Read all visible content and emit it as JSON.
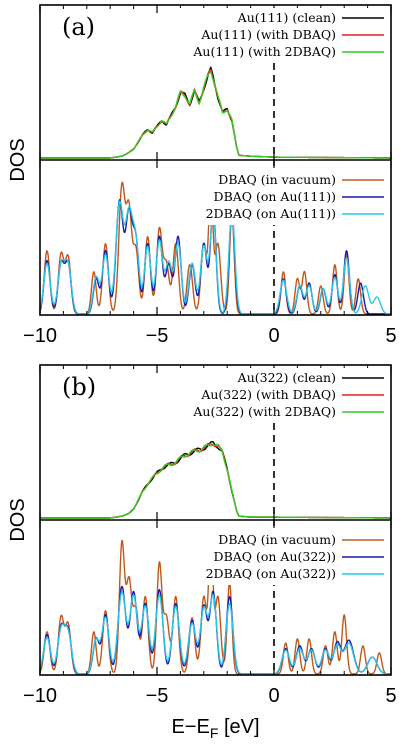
{
  "chart_data": {
    "type": "line",
    "xlabel_main": "E−E",
    "xlabel_sub": "F",
    "xlabel_unit": " [eV]",
    "xlim": [
      -10,
      5
    ],
    "xticks": [
      "−10",
      "−5",
      "0",
      "5"
    ],
    "fermi_level": 0,
    "ylabel": "DOS",
    "panels": [
      {
        "label": "(a)",
        "top_legend": [
          {
            "name": "Au(111) (clean)",
            "color": "#000000"
          },
          {
            "name": "Au(111) (with DBAQ)",
            "color": "#e0201b"
          },
          {
            "name": "Au(111) (with 2DBAQ)",
            "color": "#33cc22"
          }
        ],
        "bottom_legend": [
          {
            "name": "DBAQ (in vacuum)",
            "color": "#c0581a"
          },
          {
            "name": "DBAQ (on Au(111))",
            "color": "#1a1aa8"
          },
          {
            "name": "2DBAQ (on Au(111))",
            "color": "#29c6e6"
          }
        ],
        "metal_dos": {
          "x": [
            -10,
            -7,
            -6.5,
            -6.2,
            -6,
            -5.8,
            -5.6,
            -5.4,
            -5.2,
            -5.0,
            -4.8,
            -4.6,
            -4.4,
            -4.2,
            -4.0,
            -3.8,
            -3.6,
            -3.4,
            -3.2,
            -3.0,
            -2.8,
            -2.7,
            -2.6,
            -2.5,
            -2.4,
            -2.2,
            -2.0,
            -1.8,
            -1.6,
            -1.5,
            -1.0,
            0,
            5
          ],
          "y": [
            0,
            0,
            0.02,
            0.06,
            0.1,
            0.18,
            0.26,
            0.32,
            0.28,
            0.35,
            0.42,
            0.37,
            0.47,
            0.58,
            0.72,
            0.7,
            0.6,
            0.74,
            0.62,
            0.78,
            0.92,
            0.98,
            0.9,
            0.8,
            0.68,
            0.5,
            0.55,
            0.42,
            0.12,
            0.03,
            0.02,
            0.01,
            0
          ]
        },
        "molecule_peaks": {
          "vacuum": [
            [
              -9.7,
              0.45,
              0.12
            ],
            [
              -9.1,
              0.42,
              0.12
            ],
            [
              -8.8,
              0.4,
              0.12
            ],
            [
              -7.7,
              0.3,
              0.1
            ],
            [
              -7.2,
              0.5,
              0.12
            ],
            [
              -6.5,
              0.9,
              0.13
            ],
            [
              -6.2,
              0.72,
              0.12
            ],
            [
              -5.9,
              0.45,
              0.12
            ],
            [
              -5.4,
              0.55,
              0.12
            ],
            [
              -4.9,
              0.6,
              0.12
            ],
            [
              -4.6,
              0.35,
              0.12
            ],
            [
              -4.2,
              0.5,
              0.12
            ],
            [
              -3.6,
              0.35,
              0.12
            ],
            [
              -3.0,
              0.5,
              0.12
            ],
            [
              -2.7,
              0.88,
              0.09
            ],
            [
              -2.4,
              0.5,
              0.12
            ],
            [
              -1.8,
              0.7,
              0.1
            ],
            [
              0.4,
              0.3,
              0.1
            ],
            [
              1.0,
              0.25,
              0.1
            ],
            [
              1.3,
              0.3,
              0.1
            ],
            [
              2.0,
              0.2,
              0.1
            ],
            [
              2.6,
              0.35,
              0.1
            ],
            [
              3.1,
              0.42,
              0.1
            ],
            [
              3.6,
              0.25,
              0.1
            ]
          ],
          "on_metal": [
            [
              -9.7,
              0.38,
              0.13
            ],
            [
              -9.1,
              0.35,
              0.13
            ],
            [
              -8.8,
              0.35,
              0.13
            ],
            [
              -7.6,
              0.25,
              0.12
            ],
            [
              -7.2,
              0.45,
              0.13
            ],
            [
              -6.6,
              0.8,
              0.15
            ],
            [
              -6.2,
              0.7,
              0.14
            ],
            [
              -5.9,
              0.5,
              0.13
            ],
            [
              -5.4,
              0.5,
              0.13
            ],
            [
              -4.9,
              0.55,
              0.13
            ],
            [
              -4.5,
              0.35,
              0.13
            ],
            [
              -4.1,
              0.55,
              0.13
            ],
            [
              -3.5,
              0.35,
              0.13
            ],
            [
              -3.0,
              0.5,
              0.13
            ],
            [
              -2.6,
              0.75,
              0.12
            ],
            [
              -1.8,
              0.72,
              0.12
            ],
            [
              0.4,
              0.25,
              0.12
            ],
            [
              1.1,
              0.2,
              0.12
            ],
            [
              1.5,
              0.22,
              0.12
            ],
            [
              2.1,
              0.18,
              0.12
            ],
            [
              2.6,
              0.28,
              0.12
            ],
            [
              3.1,
              0.45,
              0.12
            ],
            [
              3.7,
              0.22,
              0.12
            ]
          ],
          "two_on_metal": [
            [
              -9.7,
              0.36,
              0.14
            ],
            [
              -9.1,
              0.34,
              0.14
            ],
            [
              -8.8,
              0.34,
              0.14
            ],
            [
              -7.6,
              0.26,
              0.13
            ],
            [
              -7.2,
              0.42,
              0.14
            ],
            [
              -6.6,
              0.78,
              0.16
            ],
            [
              -6.2,
              0.68,
              0.15
            ],
            [
              -5.9,
              0.48,
              0.14
            ],
            [
              -5.4,
              0.48,
              0.14
            ],
            [
              -4.9,
              0.52,
              0.14
            ],
            [
              -4.5,
              0.36,
              0.14
            ],
            [
              -4.1,
              0.5,
              0.14
            ],
            [
              -3.5,
              0.36,
              0.14
            ],
            [
              -3.0,
              0.48,
              0.14
            ],
            [
              -2.6,
              0.7,
              0.13
            ],
            [
              -1.8,
              0.7,
              0.13
            ],
            [
              0.4,
              0.24,
              0.14
            ],
            [
              1.1,
              0.2,
              0.13
            ],
            [
              1.5,
              0.2,
              0.13
            ],
            [
              2.1,
              0.18,
              0.13
            ],
            [
              2.6,
              0.26,
              0.13
            ],
            [
              3.1,
              0.4,
              0.13
            ],
            [
              3.9,
              0.2,
              0.15
            ],
            [
              4.4,
              0.12,
              0.15
            ]
          ]
        }
      },
      {
        "label": "(b)",
        "top_legend": [
          {
            "name": "Au(322) (clean)",
            "color": "#000000"
          },
          {
            "name": "Au(322) (with DBAQ)",
            "color": "#e0201b"
          },
          {
            "name": "Au(322) (with 2DBAQ)",
            "color": "#33cc22"
          }
        ],
        "bottom_legend": [
          {
            "name": "DBAQ (in vacuum)",
            "color": "#c0581a"
          },
          {
            "name": "DBAQ (on Au(322))",
            "color": "#1a1aa8"
          },
          {
            "name": "2DBAQ (on Au(322))",
            "color": "#29c6e6"
          }
        ],
        "metal_dos": {
          "x": [
            -10,
            -7,
            -6.5,
            -6.2,
            -6,
            -5.8,
            -5.6,
            -5.4,
            -5.2,
            -5.0,
            -4.8,
            -4.6,
            -4.4,
            -4.2,
            -4.0,
            -3.8,
            -3.6,
            -3.4,
            -3.2,
            -3.0,
            -2.8,
            -2.6,
            -2.4,
            -2.2,
            -2.0,
            -1.8,
            -1.6,
            -1.5,
            -1.0,
            0,
            5
          ],
          "y": [
            0,
            0,
            0.02,
            0.05,
            0.1,
            0.2,
            0.3,
            0.38,
            0.44,
            0.5,
            0.55,
            0.58,
            0.6,
            0.62,
            0.66,
            0.7,
            0.72,
            0.74,
            0.76,
            0.78,
            0.8,
            0.84,
            0.8,
            0.72,
            0.55,
            0.3,
            0.08,
            0.02,
            0.01,
            0.01,
            0
          ]
        },
        "molecule_peaks": {
          "vacuum": [
            [
              -9.7,
              0.3,
              0.12
            ],
            [
              -9.1,
              0.4,
              0.12
            ],
            [
              -8.8,
              0.35,
              0.12
            ],
            [
              -7.7,
              0.3,
              0.1
            ],
            [
              -7.2,
              0.45,
              0.12
            ],
            [
              -6.5,
              0.92,
              0.11
            ],
            [
              -6.2,
              0.65,
              0.12
            ],
            [
              -5.9,
              0.45,
              0.12
            ],
            [
              -5.5,
              0.55,
              0.12
            ],
            [
              -4.9,
              0.78,
              0.11
            ],
            [
              -4.6,
              0.4,
              0.12
            ],
            [
              -4.2,
              0.55,
              0.12
            ],
            [
              -3.5,
              0.4,
              0.12
            ],
            [
              -3.0,
              0.55,
              0.12
            ],
            [
              -2.7,
              0.95,
              0.09
            ],
            [
              -2.4,
              0.55,
              0.12
            ],
            [
              -1.9,
              0.65,
              0.1
            ],
            [
              0.5,
              0.22,
              0.1
            ],
            [
              1.0,
              0.25,
              0.1
            ],
            [
              1.5,
              0.25,
              0.1
            ],
            [
              2.2,
              0.2,
              0.1
            ],
            [
              2.6,
              0.3,
              0.1
            ],
            [
              3.0,
              0.42,
              0.1
            ],
            [
              3.8,
              0.2,
              0.1
            ],
            [
              4.5,
              0.15,
              0.1
            ]
          ],
          "on_metal": [
            [
              -9.7,
              0.28,
              0.14
            ],
            [
              -9.1,
              0.32,
              0.14
            ],
            [
              -8.8,
              0.3,
              0.14
            ],
            [
              -7.6,
              0.25,
              0.13
            ],
            [
              -7.2,
              0.42,
              0.14
            ],
            [
              -6.5,
              0.62,
              0.16
            ],
            [
              -6.0,
              0.58,
              0.15
            ],
            [
              -5.5,
              0.5,
              0.15
            ],
            [
              -4.9,
              0.6,
              0.15
            ],
            [
              -4.2,
              0.5,
              0.15
            ],
            [
              -3.5,
              0.38,
              0.15
            ],
            [
              -3.0,
              0.48,
              0.14
            ],
            [
              -2.6,
              0.58,
              0.14
            ],
            [
              -1.9,
              0.55,
              0.14
            ],
            [
              0.5,
              0.18,
              0.15
            ],
            [
              1.1,
              0.2,
              0.15
            ],
            [
              1.6,
              0.18,
              0.15
            ],
            [
              2.2,
              0.18,
              0.15
            ],
            [
              2.7,
              0.22,
              0.15
            ],
            [
              3.2,
              0.24,
              0.2
            ],
            [
              4.2,
              0.12,
              0.2
            ]
          ],
          "two_on_metal": [
            [
              -9.7,
              0.26,
              0.15
            ],
            [
              -9.1,
              0.3,
              0.15
            ],
            [
              -8.8,
              0.28,
              0.15
            ],
            [
              -7.6,
              0.24,
              0.14
            ],
            [
              -7.2,
              0.4,
              0.15
            ],
            [
              -6.5,
              0.58,
              0.17
            ],
            [
              -6.0,
              0.55,
              0.16
            ],
            [
              -5.5,
              0.48,
              0.16
            ],
            [
              -4.9,
              0.56,
              0.16
            ],
            [
              -4.2,
              0.48,
              0.16
            ],
            [
              -3.5,
              0.36,
              0.16
            ],
            [
              -3.0,
              0.46,
              0.15
            ],
            [
              -2.6,
              0.55,
              0.15
            ],
            [
              -1.9,
              0.5,
              0.15
            ],
            [
              0.5,
              0.17,
              0.16
            ],
            [
              1.1,
              0.18,
              0.16
            ],
            [
              1.6,
              0.17,
              0.16
            ],
            [
              2.2,
              0.17,
              0.16
            ],
            [
              2.7,
              0.2,
              0.16
            ],
            [
              3.2,
              0.22,
              0.2
            ],
            [
              4.2,
              0.12,
              0.2
            ]
          ]
        }
      }
    ]
  }
}
